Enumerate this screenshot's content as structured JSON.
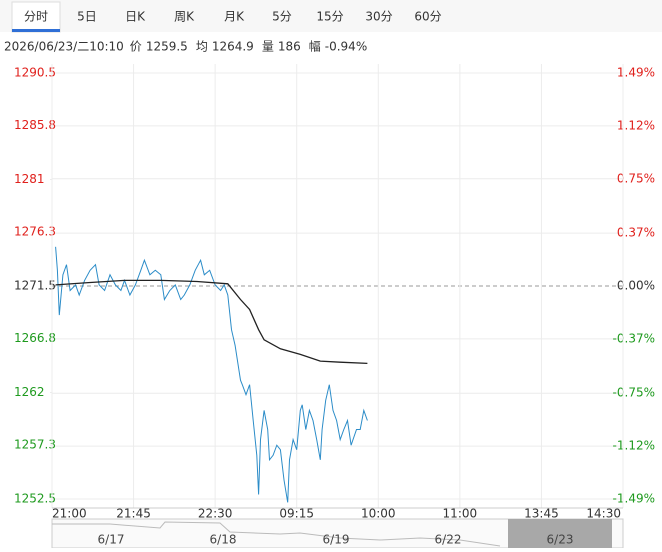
{
  "tabs": [
    "分时",
    "5日",
    "日K",
    "周K",
    "月K",
    "5分",
    "15分",
    "30分",
    "60分"
  ],
  "info": {
    "datetime": "2026/06/23/二10:10",
    "items": [
      {
        "label": "价",
        "value": "1259.5"
      },
      {
        "label": "均",
        "value": "1264.9"
      },
      {
        "label": "量",
        "value": "186"
      },
      {
        "label": "幅",
        "value": "-0.94%"
      }
    ]
  },
  "chart_data": {
    "type": "line",
    "xlim": [
      0,
      315
    ],
    "xticks": [
      {
        "value": 0,
        "label": "21:00"
      },
      {
        "value": 45,
        "label": "21:45"
      },
      {
        "value": 90,
        "label": "22:30"
      },
      {
        "value": 135,
        "label": "09:15"
      },
      {
        "value": 180,
        "label": "10:00"
      },
      {
        "value": 225,
        "label": "11:00"
      },
      {
        "value": 270,
        "label": "13:45"
      },
      {
        "value": 315,
        "label": "14:30"
      }
    ],
    "ylim": [
      1252.5,
      1290.5
    ],
    "yticks": [
      1290.5,
      1285.8,
      1281.0,
      1276.3,
      1271.5,
      1266.8,
      1262.0,
      1257.3,
      1252.5
    ],
    "y2lim": [
      -1.49,
      1.49
    ],
    "y2ticks": [
      {
        "value": 1.49,
        "label": "1.49%"
      },
      {
        "value": 1.12,
        "label": "1.12%"
      },
      {
        "value": 0.75,
        "label": "0.75%"
      },
      {
        "value": 0.37,
        "label": "0.37%"
      },
      {
        "value": 0,
        "label": "0.00%"
      },
      {
        "value": -0.37,
        "label": "-0.37%"
      },
      {
        "value": -0.75,
        "label": "-0.75%"
      },
      {
        "value": -1.12,
        "label": "-1.12%"
      },
      {
        "value": -1.49,
        "label": "-1.49%"
      }
    ],
    "up_color": "#e0201c",
    "down_color": "#1e9a1e",
    "flat_color": "#333333",
    "grid": true,
    "series": [
      {
        "color": "#2b8cc8",
        "x": [
          2,
          3,
          4,
          6,
          8,
          10,
          13,
          15,
          18,
          21,
          24,
          26,
          29,
          32,
          35,
          38,
          40,
          43,
          46,
          49,
          51,
          54,
          57,
          60,
          62,
          65,
          68,
          71,
          73,
          76,
          79,
          82,
          84,
          87,
          90,
          93,
          95,
          97,
          99,
          101,
          104,
          105,
          107,
          109,
          111,
          113,
          114,
          115,
          117,
          119,
          120,
          122,
          124,
          126,
          128,
          130,
          131,
          133,
          135,
          137,
          138,
          140,
          142,
          144,
          146,
          148,
          149,
          151,
          153,
          155,
          157,
          159,
          161,
          163,
          165,
          168,
          170,
          172,
          174
        ],
        "values": [
          1275.0,
          1272.9,
          1268.9,
          1272.5,
          1273.4,
          1271.1,
          1271.6,
          1270.7,
          1272.0,
          1272.9,
          1273.4,
          1271.6,
          1271.1,
          1272.5,
          1271.6,
          1271.1,
          1272.0,
          1270.7,
          1271.6,
          1272.9,
          1273.8,
          1272.5,
          1272.9,
          1272.5,
          1270.3,
          1271.1,
          1271.6,
          1270.3,
          1270.7,
          1271.6,
          1272.9,
          1273.8,
          1272.5,
          1272.9,
          1271.6,
          1271.1,
          1271.6,
          1270.7,
          1267.6,
          1266.2,
          1263.1,
          1262.7,
          1261.8,
          1262.7,
          1259.5,
          1256.4,
          1252.9,
          1257.8,
          1260.4,
          1258.7,
          1256.0,
          1256.4,
          1257.3,
          1256.9,
          1254.2,
          1252.2,
          1256.0,
          1257.8,
          1256.9,
          1260.4,
          1260.9,
          1258.7,
          1260.4,
          1259.5,
          1257.8,
          1256.0,
          1258.7,
          1261.3,
          1262.7,
          1260.4,
          1259.5,
          1257.8,
          1258.7,
          1259.5,
          1257.3,
          1258.7,
          1258.7,
          1260.4,
          1259.5
        ]
      },
      {
        "color": "#222222",
        "x": [
          2,
          20,
          40,
          60,
          80,
          97,
          104,
          109,
          114,
          117,
          126,
          137,
          148,
          159,
          174
        ],
        "values": [
          1271.6,
          1271.8,
          1272.0,
          1272.0,
          1271.9,
          1271.7,
          1270.3,
          1269.4,
          1267.6,
          1266.7,
          1265.9,
          1265.4,
          1264.8,
          1264.7,
          1264.6
        ]
      }
    ]
  },
  "navigator": {
    "dates": [
      "6/17",
      "6/18",
      "6/19",
      "6/22",
      "6/23"
    ]
  }
}
